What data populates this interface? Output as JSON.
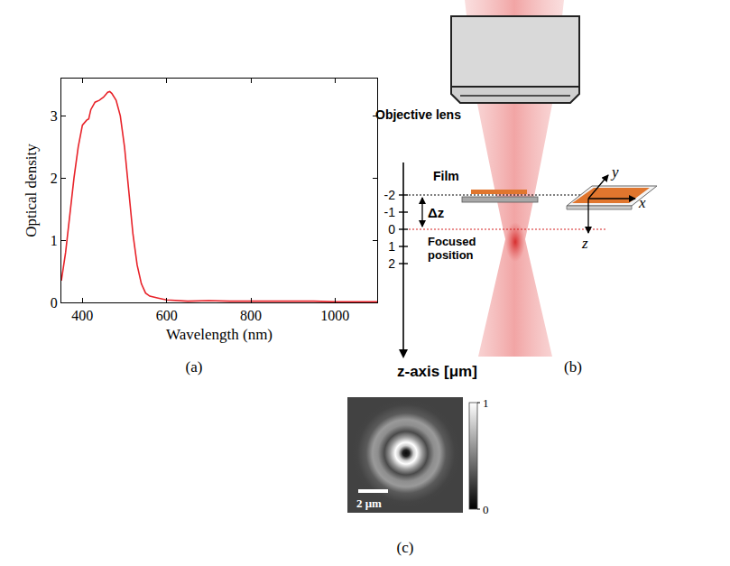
{
  "chart_data": {
    "type": "line",
    "panel_label": "(a)",
    "x_label": "Wavelength (nm)",
    "y_label": "Optical density",
    "x": [
      350,
      360,
      370,
      380,
      390,
      400,
      410,
      415,
      420,
      430,
      440,
      450,
      460,
      465,
      470,
      480,
      490,
      500,
      510,
      520,
      530,
      540,
      550,
      560,
      580,
      600,
      650,
      700,
      750,
      800,
      850,
      900,
      950,
      1000,
      1050,
      1100
    ],
    "values": [
      0.35,
      0.8,
      1.4,
      2.0,
      2.5,
      2.85,
      2.93,
      2.95,
      3.1,
      3.22,
      3.25,
      3.3,
      3.38,
      3.39,
      3.36,
      3.25,
      3.0,
      2.5,
      1.8,
      1.1,
      0.6,
      0.3,
      0.15,
      0.1,
      0.07,
      0.04,
      0.02,
      0.03,
      0.02,
      0.02,
      0.03,
      0.02,
      0.02,
      0.01,
      0.01,
      0.01
    ],
    "color": "#e8232a",
    "xlim": [
      350,
      1100
    ],
    "xticks": [
      400,
      600,
      800,
      1000
    ],
    "ylim": [
      0,
      3.6
    ],
    "yticks": [
      0,
      1,
      2,
      3
    ],
    "grid": false
  },
  "diagram": {
    "panel_label": "(b)",
    "objective": "Objective lens",
    "film": "Film",
    "focus": "Focused position",
    "dz": "Δz",
    "axis_title": "z-axis [μm]",
    "z_ticks": [
      -2,
      -1,
      0,
      1,
      2
    ],
    "coords": [
      "x",
      "y",
      "z"
    ]
  },
  "image": {
    "panel_label": "(c)",
    "scale_bar": "2 μm",
    "colorbar_range": [
      0,
      1
    ],
    "colorbar_ticks": [
      0,
      1
    ]
  }
}
